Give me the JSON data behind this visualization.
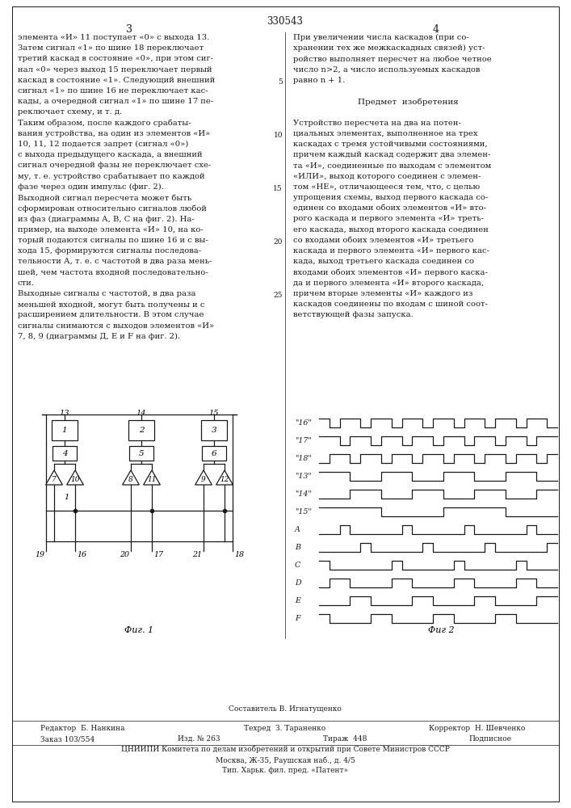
{
  "title": "330543",
  "page_left": "3",
  "page_right": "4",
  "fig1_label": "Фиг. 1",
  "fig2_label": "Фиг 2",
  "line_numbers": [
    "5",
    "10",
    "15",
    "20",
    "25"
  ],
  "text_left_lines": [
    "элемента «И» 11 поступает «0» с выхода 13.",
    "Затем сигнал «1» по шине 18 переключает",
    "третий каскад в состояние «0», при этом сиг-",
    "нал «0» через выход 15 переключает первый",
    "каскад в состояние «1». Следующий внешний",
    "сигнал «1» по шине 16 не переключает кас-",
    "кады, а очередной сигнал «1» по шине 17 пе-",
    "реключает схему, и т. д.",
    "Таким образом, после каждого срабаты-",
    "вания устройства, на один из элементов «И»",
    "10, 11, 12 подается запрет (сигнал «0»)",
    "с выхода предыдущего каскада, а внешний",
    "сигнал очередной фазы не переключает схе-",
    "му, т. е. устройство срабатывает по каждой",
    "фазе через один импульс (фиг. 2).",
    "Выходной сигнал пересчета может быть",
    "сформирован относительно сигналов любой",
    "из фаз (диаграммы А, В, С на фиг. 2). На-",
    "пример, на выходе элемента «И» 10, на ко-",
    "торый подаются сигналы по шине 16 и с вы-",
    "хода 15, формируются сигналы последова-",
    "тельности А, т. е. с частотой в два раза мень-",
    "шей, чем частота входной последовательно-",
    "сти.",
    "Выходные сигналы с частотой, в два раза",
    "меньшей входной, могут быть получены и с",
    "расширением длительности. В этом случае",
    "сигналы снимаются с выходов элементов «И»",
    "7, 8, 9 (диаграммы Д, Е и F на фиг. 2)."
  ],
  "text_right_lines": [
    "При увеличении числа каскадов (при со-",
    "хранении тех же межкаскадных связей) уст-",
    "ройство выполняет пересчет на любое четное",
    "число n>2, а число используемых каскадов",
    "равно n + 1.",
    "",
    "Предмет  изобретения",
    "",
    "Устройство пересчета на два на потен-",
    "циальных элементах, выполненное на трех",
    "каскадах с тремя устойчивыми состояниями,",
    "причем каждый каскад содержит два элемен-",
    "та «И», соединенные по выходам с элементом",
    "«ИЛИ», выход которого соединен с элемен-",
    "том «НЕ», отличающееся тем, что, с целью",
    "упрощения схемы, выход первого каскада со-",
    "единен со входами обоих элементов «И» вто-",
    "рого каскада и первого элемента «И» треть-",
    "его каскада, выход второго каскада соединен",
    "со входами обоих элементов «И» третьего",
    "каскада и первого элемента «И» первого кас-",
    "када, выход третьего каскада соединен со",
    "входами обоих элементов «И» первого каска-",
    "да и первого элемента «И» второго каскада,",
    "причем вторые элементы «И» каждого из",
    "каскадов соединены по входам с шиной соот-",
    "ветствующей фазы запуска."
  ],
  "footer_line1_left": "Редактор  Б. Нанкина",
  "footer_line1_center_top": "Составитель В. Игнатущенко",
  "footer_line1_center_bot": "Техред  З. Тараненко",
  "footer_line1_right": "Корректор  Н. Шевченко",
  "footer_line2a": "Заказ 103/554",
  "footer_line2b": "Изд. № 263",
  "footer_line2c": "Тираж  448",
  "footer_line2d": "Подписное",
  "footer_line3": "ЦНИИПИ Комитета по делам изобретений и открытий при Совете Министров СССР",
  "footer_line4": "Москва, Ж-35, Раушская наб., д. 4/5",
  "footer_line5": "Тип. Харьк. фил. пред. «Патент»",
  "bg_color": "#ffffff",
  "text_color": "#1a1a1a",
  "line_color": "#1a1a1a",
  "sig_labels": [
    "\"16\"",
    "\"17\"",
    "\"18\"",
    "\"13\"",
    "\"14\"",
    "\"15\"",
    "A",
    "B",
    "C",
    "D",
    "E",
    "F"
  ],
  "sig_patterns_16": [
    1,
    0,
    1,
    1,
    0,
    1,
    1,
    0,
    1,
    1,
    0,
    1,
    1,
    0,
    1,
    1,
    0,
    1,
    1,
    0,
    1,
    1,
    0
  ],
  "sig_patterns_17": [
    1,
    1,
    0,
    1,
    1,
    0,
    1,
    1,
    0,
    1,
    1,
    0,
    1,
    1,
    0,
    1,
    1,
    0,
    1,
    1,
    0,
    1,
    1
  ],
  "sig_patterns_18": [
    0,
    1,
    1,
    0,
    1,
    1,
    0,
    1,
    1,
    0,
    1,
    1,
    0,
    1,
    1,
    0,
    1,
    1,
    0,
    1,
    1,
    0,
    1
  ],
  "sig_patterns_13": [
    1,
    1,
    1,
    0,
    0,
    0,
    1,
    1,
    1,
    0,
    0,
    0,
    1,
    1,
    1,
    0,
    0,
    0,
    1,
    1,
    1,
    0,
    0
  ],
  "sig_patterns_14": [
    0,
    0,
    0,
    1,
    1,
    1,
    0,
    0,
    0,
    1,
    1,
    1,
    0,
    0,
    0,
    1,
    1,
    1,
    0,
    0,
    0,
    1,
    1
  ],
  "sig_patterns_15": [
    1,
    1,
    1,
    1,
    1,
    1,
    0,
    0,
    0,
    0,
    0,
    0,
    1,
    1,
    1,
    1,
    1,
    1,
    0,
    0,
    0,
    0,
    0
  ],
  "sig_patterns_A": [
    0,
    0,
    1,
    0,
    0,
    0,
    0,
    0,
    1,
    0,
    0,
    0,
    0,
    0,
    1,
    0,
    0,
    0,
    0,
    0,
    1,
    0,
    0
  ],
  "sig_patterns_B": [
    0,
    0,
    0,
    0,
    1,
    0,
    0,
    0,
    0,
    0,
    1,
    0,
    0,
    0,
    0,
    0,
    1,
    0,
    0,
    0,
    0,
    0,
    1
  ],
  "sig_patterns_C": [
    1,
    0,
    0,
    0,
    0,
    0,
    0,
    1,
    0,
    0,
    0,
    0,
    0,
    1,
    0,
    0,
    0,
    0,
    0,
    1,
    0,
    0,
    0
  ],
  "sig_patterns_D": [
    0,
    1,
    1,
    0,
    0,
    0,
    0,
    1,
    1,
    0,
    0,
    0,
    0,
    1,
    1,
    0,
    0,
    0,
    0,
    1,
    1,
    0,
    0
  ],
  "sig_patterns_E": [
    0,
    0,
    0,
    1,
    1,
    0,
    0,
    0,
    0,
    1,
    1,
    0,
    0,
    0,
    0,
    1,
    1,
    0,
    0,
    0,
    0,
    1,
    1
  ],
  "sig_patterns_F": [
    1,
    0,
    0,
    0,
    0,
    1,
    1,
    0,
    0,
    0,
    0,
    1,
    1,
    0,
    0,
    0,
    0,
    1,
    1,
    0,
    0,
    0,
    0
  ]
}
